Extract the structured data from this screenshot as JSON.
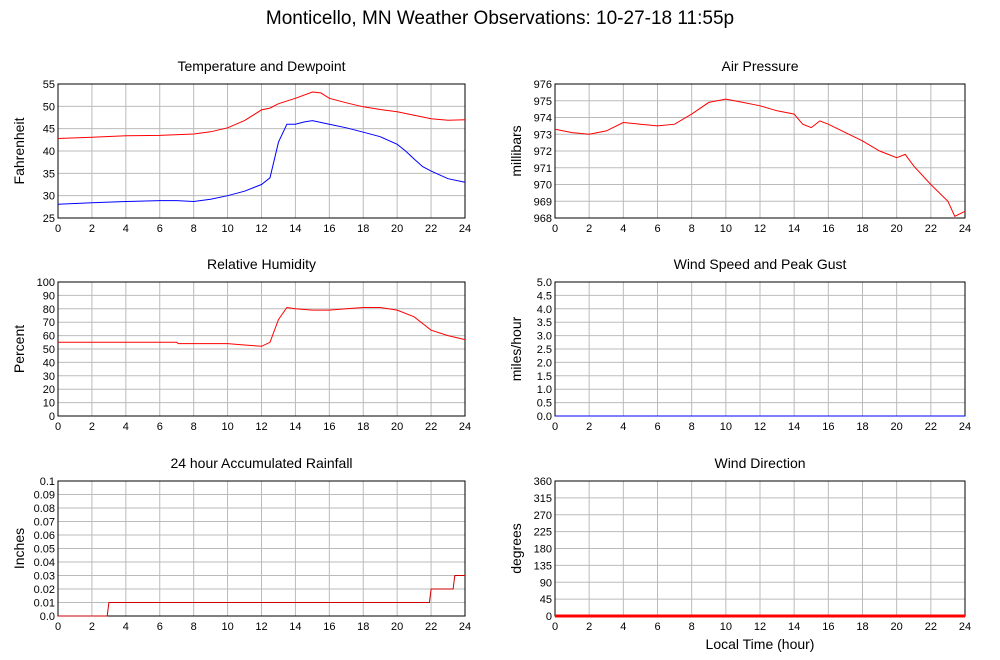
{
  "page": {
    "title": "Monticello, MN Weather Observations: 10-27-18 11:55p",
    "xlabel": "Local Time (hour)"
  },
  "chart_data": [
    {
      "type": "line",
      "title": "Temperature and Dewpoint",
      "ylabel": "Fahrenheit",
      "xlabel": "",
      "xlim": [
        0,
        24
      ],
      "ylim": [
        25,
        55
      ],
      "xticks": [
        "0",
        "2",
        "4",
        "6",
        "8",
        "10",
        "12",
        "14",
        "16",
        "18",
        "20",
        "22",
        "24"
      ],
      "yticks": [
        "25",
        "30",
        "35",
        "40",
        "45",
        "50",
        "55"
      ],
      "grid": true,
      "series": [
        {
          "color": "#ff0000",
          "points": [
            [
              0,
              42.8
            ],
            [
              2,
              43.1
            ],
            [
              4,
              43.4
            ],
            [
              6,
              43.5
            ],
            [
              8,
              43.8
            ],
            [
              9,
              44.3
            ],
            [
              10,
              45.2
            ],
            [
              11,
              46.8
            ],
            [
              12,
              49.2
            ],
            [
              12.5,
              49.6
            ],
            [
              13,
              50.6
            ],
            [
              14,
              51.8
            ],
            [
              15,
              53.2
            ],
            [
              15.5,
              53.0
            ],
            [
              16,
              51.8
            ],
            [
              17,
              50.8
            ],
            [
              18,
              49.9
            ],
            [
              19,
              49.3
            ],
            [
              20,
              48.8
            ],
            [
              21,
              48.0
            ],
            [
              22,
              47.2
            ],
            [
              23,
              46.9
            ],
            [
              24,
              47.0
            ]
          ]
        },
        {
          "color": "#0000ff",
          "points": [
            [
              0,
              28.1
            ],
            [
              2,
              28.4
            ],
            [
              4,
              28.7
            ],
            [
              6,
              28.9
            ],
            [
              7,
              28.9
            ],
            [
              8,
              28.7
            ],
            [
              9,
              29.2
            ],
            [
              10,
              30.0
            ],
            [
              11,
              31.0
            ],
            [
              12,
              32.5
            ],
            [
              12.5,
              34.0
            ],
            [
              13,
              42.0
            ],
            [
              13.5,
              46.0
            ],
            [
              14,
              46.0
            ],
            [
              14.5,
              46.5
            ],
            [
              15,
              46.8
            ],
            [
              16,
              46.0
            ],
            [
              17,
              45.2
            ],
            [
              18,
              44.2
            ],
            [
              19,
              43.2
            ],
            [
              20,
              41.5
            ],
            [
              20.5,
              40.0
            ],
            [
              21,
              38.2
            ],
            [
              21.5,
              36.5
            ],
            [
              22,
              35.5
            ],
            [
              23,
              33.8
            ],
            [
              24,
              33.0
            ]
          ]
        }
      ]
    },
    {
      "type": "line",
      "title": "Air Pressure",
      "ylabel": "millibars",
      "xlabel": "",
      "xlim": [
        0,
        24
      ],
      "ylim": [
        968,
        976
      ],
      "xticks": [
        "0",
        "2",
        "4",
        "6",
        "8",
        "10",
        "12",
        "14",
        "16",
        "18",
        "20",
        "22",
        "24"
      ],
      "yticks": [
        "968",
        "969",
        "970",
        "971",
        "972",
        "973",
        "974",
        "975",
        "976"
      ],
      "grid": true,
      "series": [
        {
          "color": "#ff0000",
          "points": [
            [
              0,
              973.3
            ],
            [
              1,
              973.1
            ],
            [
              2,
              973.0
            ],
            [
              3,
              973.2
            ],
            [
              4,
              973.7
            ],
            [
              5,
              973.6
            ],
            [
              6,
              973.5
            ],
            [
              7,
              973.6
            ],
            [
              8,
              974.2
            ],
            [
              9,
              974.9
            ],
            [
              10,
              975.1
            ],
            [
              11,
              974.9
            ],
            [
              12,
              974.7
            ],
            [
              13,
              974.4
            ],
            [
              14,
              974.2
            ],
            [
              14.5,
              973.6
            ],
            [
              15,
              973.4
            ],
            [
              15.5,
              973.8
            ],
            [
              16,
              973.6
            ],
            [
              17,
              973.1
            ],
            [
              18,
              972.6
            ],
            [
              19,
              972.0
            ],
            [
              20,
              971.6
            ],
            [
              20.5,
              971.8
            ],
            [
              21,
              971.1
            ],
            [
              22,
              970.0
            ],
            [
              23,
              969.0
            ],
            [
              23.4,
              968.1
            ],
            [
              24,
              968.4
            ]
          ]
        }
      ]
    },
    {
      "type": "line",
      "title": "Relative Humidity",
      "ylabel": "Percent",
      "xlabel": "",
      "xlim": [
        0,
        24
      ],
      "ylim": [
        0,
        100
      ],
      "xticks": [
        "0",
        "2",
        "4",
        "6",
        "8",
        "10",
        "12",
        "14",
        "16",
        "18",
        "20",
        "22",
        "24"
      ],
      "yticks": [
        "0",
        "10",
        "20",
        "30",
        "40",
        "50",
        "60",
        "70",
        "80",
        "90",
        "100"
      ],
      "grid": true,
      "series": [
        {
          "color": "#ff0000",
          "points": [
            [
              0,
              55
            ],
            [
              4,
              55
            ],
            [
              7,
              55
            ],
            [
              7.1,
              54
            ],
            [
              10,
              54
            ],
            [
              11,
              53
            ],
            [
              12,
              52
            ],
            [
              12.5,
              55
            ],
            [
              13,
              72
            ],
            [
              13.5,
              81
            ],
            [
              14,
              80
            ],
            [
              15,
              79
            ],
            [
              16,
              79
            ],
            [
              17,
              80
            ],
            [
              18,
              81
            ],
            [
              19,
              81
            ],
            [
              20,
              79
            ],
            [
              21,
              74
            ],
            [
              22,
              64
            ],
            [
              23,
              60
            ],
            [
              24,
              57
            ]
          ]
        }
      ]
    },
    {
      "type": "line",
      "title": "Wind Speed and Peak Gust",
      "ylabel": "miles/hour",
      "xlabel": "",
      "xlim": [
        0,
        24
      ],
      "ylim": [
        0,
        5
      ],
      "xticks": [
        "0",
        "2",
        "4",
        "6",
        "8",
        "10",
        "12",
        "14",
        "16",
        "18",
        "20",
        "22",
        "24"
      ],
      "yticks": [
        "0.0",
        "0.5",
        "1.0",
        "1.5",
        "2.0",
        "2.5",
        "3.0",
        "3.5",
        "4.0",
        "4.5",
        "5.0"
      ],
      "grid": true,
      "series": [
        {
          "color": "#ff0000",
          "points": [
            [
              0,
              0
            ],
            [
              24,
              0
            ]
          ]
        },
        {
          "color": "#0000ff",
          "points": [
            [
              0,
              0
            ],
            [
              24,
              0
            ]
          ]
        }
      ]
    },
    {
      "type": "line",
      "title": "24 hour Accumulated Rainfall",
      "ylabel": "Inches",
      "xlabel": "",
      "xlim": [
        0,
        24
      ],
      "ylim": [
        0,
        0.1
      ],
      "xticks": [
        "0",
        "2",
        "4",
        "6",
        "8",
        "10",
        "12",
        "14",
        "16",
        "18",
        "20",
        "22",
        "24"
      ],
      "yticks": [
        "0.0",
        "0.01",
        "0.02",
        "0.03",
        "0.04",
        "0.05",
        "0.06",
        "0.07",
        "0.08",
        "0.09",
        "0.1"
      ],
      "grid": true,
      "series": [
        {
          "color": "#cc0000",
          "points": [
            [
              0,
              0
            ],
            [
              2.9,
              0
            ],
            [
              3,
              0.01
            ],
            [
              21.9,
              0.01
            ],
            [
              22,
              0.02
            ],
            [
              23.3,
              0.02
            ],
            [
              23.4,
              0.03
            ],
            [
              24,
              0.03
            ]
          ]
        }
      ]
    },
    {
      "type": "line",
      "title": "Wind Direction",
      "ylabel": "degrees",
      "xlabel": "Local Time (hour)",
      "xlim": [
        0,
        24
      ],
      "ylim": [
        0,
        360
      ],
      "xticks": [
        "0",
        "2",
        "4",
        "6",
        "8",
        "10",
        "12",
        "14",
        "16",
        "18",
        "20",
        "22",
        "24"
      ],
      "yticks": [
        "0",
        "45",
        "90",
        "135",
        "180",
        "225",
        "270",
        "315",
        "360"
      ],
      "grid": true,
      "series": [
        {
          "color": "#ff0000",
          "points": [
            [
              0,
              0
            ],
            [
              24,
              0
            ]
          ]
        }
      ]
    }
  ]
}
